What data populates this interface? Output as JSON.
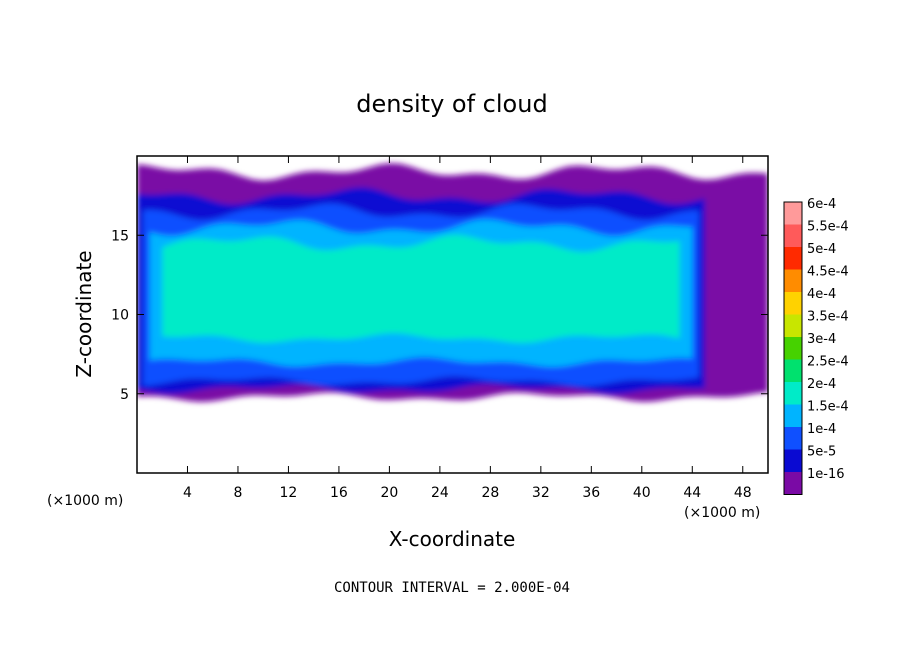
{
  "chart_data": {
    "type": "heatmap",
    "title": "density of cloud",
    "xlabel": "X-coordinate",
    "ylabel": "Z-coordinate",
    "x_units": "(×1000 m)",
    "y_units": "(×1000 m)",
    "xlim": [
      0,
      50
    ],
    "ylim": [
      0,
      20
    ],
    "x_ticks": [
      4,
      8,
      12,
      16,
      20,
      24,
      28,
      32,
      36,
      40,
      44,
      48
    ],
    "y_ticks": [
      5,
      10,
      15
    ],
    "colorbar": {
      "labels": [
        "6e-4",
        "5.5e-4",
        "5e-4",
        "4.5e-4",
        "4e-4",
        "3.5e-4",
        "3e-4",
        "2.5e-4",
        "2e-4",
        "1.5e-4",
        "1e-4",
        "5e-5",
        "1e-16"
      ],
      "colors": [
        "#ff9a9a",
        "#ff5a5a",
        "#ff2a00",
        "#ff8c00",
        "#ffd200",
        "#c8e600",
        "#46d200",
        "#00e16e",
        "#00ebc8",
        "#00b4ff",
        "#0f50ff",
        "#0a0ad2",
        "#7a0aa5"
      ]
    },
    "footer": "CONTOUR INTERVAL = 2.000E-04",
    "cloud_regions": [
      {
        "level": "1e-16",
        "z_bottom": 4.8,
        "z_top": 19.0,
        "x_start": 0,
        "x_end": 50
      },
      {
        "level": "5e-5",
        "z_bottom": 5.3,
        "z_top": 17.5,
        "x_start": 0,
        "x_end": 45
      },
      {
        "level": "1e-4",
        "z_bottom": 5.8,
        "z_top": 16.5,
        "x_start": 0.5,
        "x_end": 44.5
      },
      {
        "level": "1.5e-4",
        "z_bottom": 7.0,
        "z_top": 15.5,
        "x_start": 1,
        "x_end": 44
      },
      {
        "level": "2e-4",
        "z_bottom": 8.5,
        "z_top": 14.5,
        "x_start": 2,
        "x_end": 43
      }
    ]
  }
}
